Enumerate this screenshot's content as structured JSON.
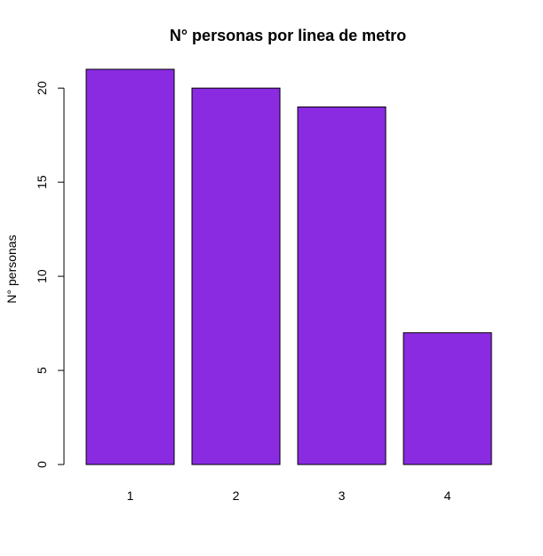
{
  "chart_data": {
    "type": "bar",
    "title": "N° personas por linea de metro",
    "xlabel": "",
    "ylabel": "N° personas",
    "categories": [
      "1",
      "2",
      "3",
      "4"
    ],
    "values": [
      21,
      20,
      19,
      7
    ],
    "ylim": [
      0,
      21
    ],
    "yticks": [
      0,
      5,
      10,
      15,
      20
    ],
    "bar_color": "#8A2BE2",
    "grid": false,
    "legend": "none"
  }
}
